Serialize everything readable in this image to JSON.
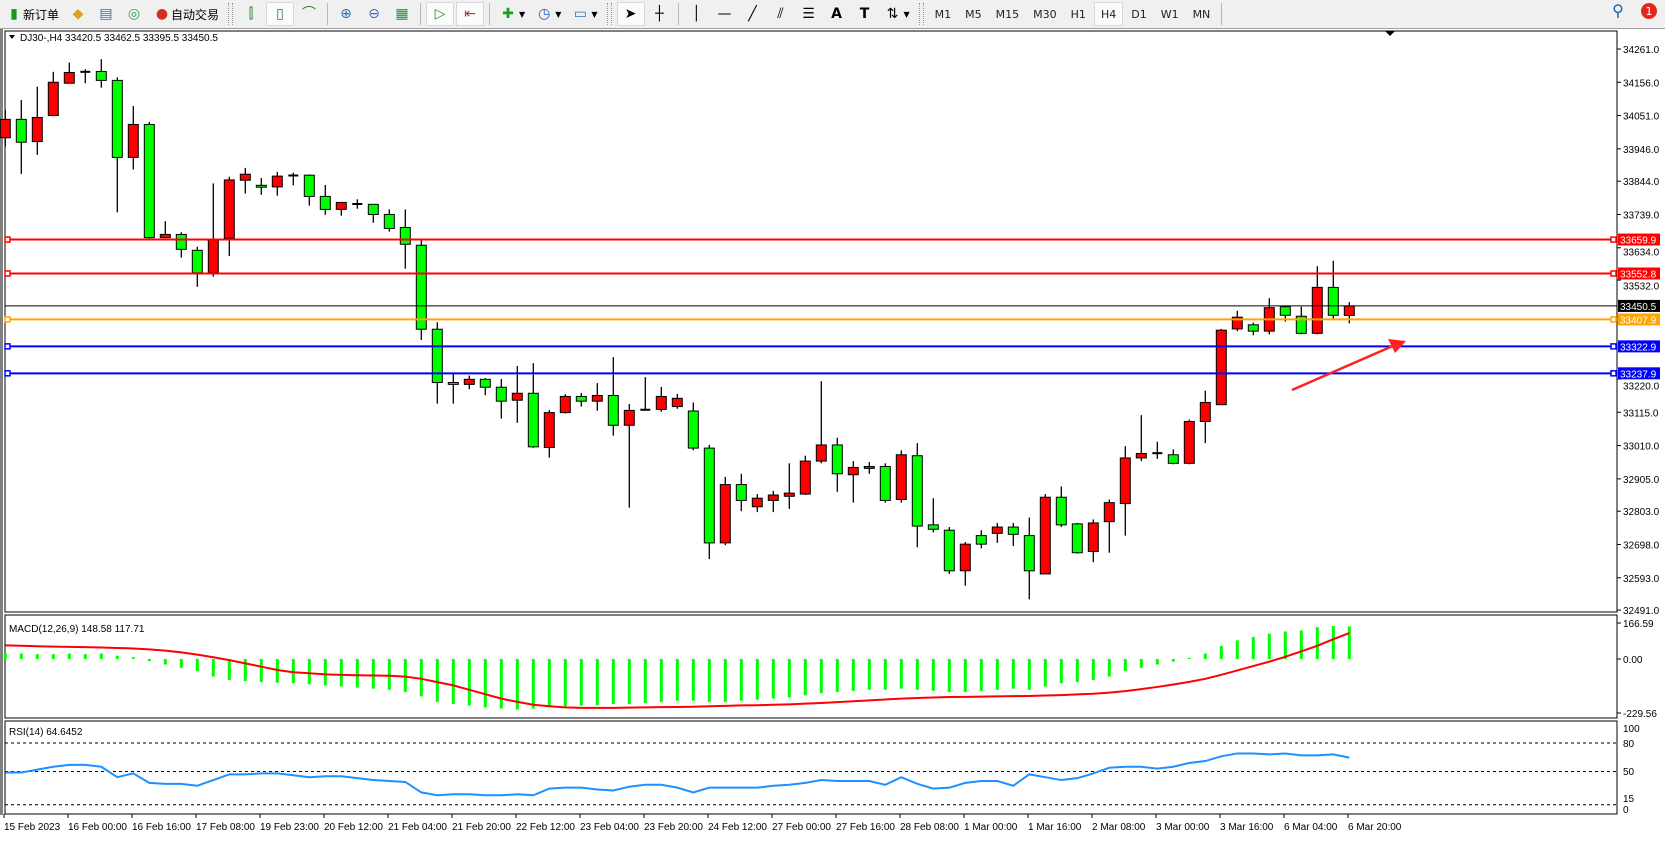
{
  "toolbar": {
    "new_order": "新订单",
    "auto_trading": "自动交易",
    "periods": [
      "M1",
      "M5",
      "M15",
      "M30",
      "H1",
      "H4",
      "D1",
      "W1",
      "MN"
    ],
    "active_period": "H4",
    "notification_count": "1",
    "icons": [
      "new-order-icon",
      "history-icon",
      "terminal-icon",
      "signal-icon",
      "auto-trading-icon",
      "bar-chart-icon",
      "candlestick-icon",
      "line-chart-icon",
      "zoom-in-icon",
      "zoom-out-icon",
      "tile-windows-icon",
      "auto-scroll-icon",
      "chart-shift-icon",
      "indicators-icon",
      "periods-icon",
      "templates-icon",
      "cursor-icon",
      "crosshair-icon",
      "vertical-line-icon",
      "horizontal-line-icon",
      "trendline-icon",
      "equidistant-channel-icon",
      "fibonacci-icon",
      "text-icon",
      "text-label-icon",
      "arrows-icon",
      "search-icon",
      "notification-icon"
    ]
  },
  "chart": {
    "symbol_header": "DJ30-,H4  33420.5 33462.5 33395.5 33450.5",
    "colors": {
      "up": "#ff0000",
      "down": "#00ff00",
      "outline": "#000000",
      "macd_hist": "#00ff00",
      "macd_signal": "#ff0000",
      "rsi": "#1e90ff"
    },
    "price_ticks": [
      "34261.0",
      "34156.0",
      "34051.0",
      "33946.0",
      "33844.0",
      "33739.0",
      "33634.0",
      "33532.0",
      "33220.0",
      "33115.0",
      "33010.0",
      "32905.0",
      "32803.0",
      "32698.0",
      "32593.0",
      "32491.0"
    ],
    "levels": [
      {
        "price": "33659.9",
        "color": "#ff0000"
      },
      {
        "price": "33552.8",
        "color": "#ff0000"
      },
      {
        "price": "33450.5",
        "color": "#000000",
        "bid": true
      },
      {
        "price": "33407.9",
        "color": "#ffa500"
      },
      {
        "price": "33322.9",
        "color": "#0000ff"
      },
      {
        "price": "33237.9",
        "color": "#0000ff"
      }
    ],
    "arrow_color": "#ff2020",
    "time_labels": [
      "15 Feb 2023",
      "16 Feb 00:00",
      "16 Feb 16:00",
      "17 Feb 08:00",
      "19 Feb 23:00",
      "20 Feb 12:00",
      "21 Feb 04:00",
      "21 Feb 20:00",
      "22 Feb 12:00",
      "23 Feb 04:00",
      "23 Feb 20:00",
      "24 Feb 12:00",
      "27 Feb 00:00",
      "27 Feb 16:00",
      "28 Feb 08:00",
      "1 Mar 00:00",
      "1 Mar 16:00",
      "2 Mar 08:00",
      "3 Mar 00:00",
      "3 Mar 16:00",
      "6 Mar 04:00",
      "6 Mar 20:00"
    ]
  },
  "macd": {
    "label": "MACD(12,26,9) 148.58 117.71",
    "ticks": [
      "166.59",
      "0.00",
      "-229.56"
    ]
  },
  "rsi": {
    "label": "RSI(14) 64.6452",
    "ticks": [
      "100",
      "80",
      "50",
      "15",
      "0"
    ]
  },
  "chart_data": [
    {
      "type": "candlestick",
      "title": "DJ30-,H4",
      "ohlc_order": [
        "open",
        "high",
        "low",
        "close"
      ],
      "ylim": [
        32491,
        34261
      ],
      "candles": [
        [
          33981,
          34069,
          33953,
          34039
        ],
        [
          34039,
          34100,
          33867,
          33967
        ],
        [
          33969,
          34142,
          33927,
          34045
        ],
        [
          34051,
          34189,
          34051,
          34156
        ],
        [
          34153,
          34218,
          34153,
          34187
        ],
        [
          34189,
          34197,
          34153,
          34188
        ],
        [
          34190,
          34229,
          34139,
          34162
        ],
        [
          34162,
          34172,
          33746,
          33919
        ],
        [
          33919,
          34081,
          33881,
          34023
        ],
        [
          34023,
          34031,
          33658,
          33666
        ],
        [
          33666,
          33718,
          33666,
          33676
        ],
        [
          33676,
          33683,
          33603,
          33629
        ],
        [
          33626,
          33637,
          33511,
          33555
        ],
        [
          33555,
          33837,
          33543,
          33661
        ],
        [
          33664,
          33858,
          33608,
          33848
        ],
        [
          33847,
          33886,
          33805,
          33866
        ],
        [
          33831,
          33854,
          33801,
          33825
        ],
        [
          33826,
          33873,
          33798,
          33860
        ],
        [
          33862,
          33871,
          33831,
          33860
        ],
        [
          33863,
          33865,
          33767,
          33796
        ],
        [
          33796,
          33832,
          33738,
          33755
        ],
        [
          33755,
          33777,
          33735,
          33777
        ],
        [
          33772,
          33787,
          33757,
          33772
        ],
        [
          33771,
          33771,
          33713,
          33739
        ],
        [
          33739,
          33755,
          33685,
          33695
        ],
        [
          33698,
          33755,
          33568,
          33645
        ],
        [
          33642,
          33658,
          33343,
          33377
        ],
        [
          33377,
          33399,
          33142,
          33209
        ],
        [
          33209,
          33238,
          33142,
          33203
        ],
        [
          33203,
          33231,
          33188,
          33219
        ],
        [
          33219,
          33223,
          33169,
          33194
        ],
        [
          33194,
          33220,
          33095,
          33150
        ],
        [
          33153,
          33261,
          33082,
          33175
        ],
        [
          33175,
          33270,
          33003,
          33006
        ],
        [
          33004,
          33122,
          32972,
          33114
        ],
        [
          33114,
          33172,
          33111,
          33165
        ],
        [
          33165,
          33176,
          33133,
          33150
        ],
        [
          33150,
          33207,
          33120,
          33168
        ],
        [
          33168,
          33289,
          33041,
          33074
        ],
        [
          33074,
          33141,
          32814,
          33121
        ],
        [
          33123,
          33226,
          33120,
          33123
        ],
        [
          33124,
          33195,
          33117,
          33165
        ],
        [
          33133,
          33173,
          33126,
          33159
        ],
        [
          33119,
          33146,
          32995,
          33002
        ],
        [
          33002,
          33012,
          32652,
          32703
        ],
        [
          32703,
          32911,
          32696,
          32887
        ],
        [
          32887,
          32921,
          32803,
          32837
        ],
        [
          32817,
          32857,
          32800,
          32844
        ],
        [
          32837,
          32867,
          32800,
          32854
        ],
        [
          32850,
          32954,
          32810,
          32860
        ],
        [
          32857,
          32978,
          32854,
          32961
        ],
        [
          32961,
          33213,
          32954,
          33012
        ],
        [
          33012,
          33035,
          32864,
          32921
        ],
        [
          32918,
          32961,
          32830,
          32941
        ],
        [
          32938,
          32958,
          32921,
          32944
        ],
        [
          32944,
          32954,
          32830,
          32837
        ],
        [
          32840,
          32995,
          32830,
          32981
        ],
        [
          32978,
          33018,
          32689,
          32756
        ],
        [
          32760,
          32844,
          32736,
          32746
        ],
        [
          32743,
          32753,
          32605,
          32615
        ],
        [
          32615,
          32706,
          32568,
          32699
        ],
        [
          32726,
          32743,
          32686,
          32699
        ],
        [
          32733,
          32766,
          32703,
          32753
        ],
        [
          32753,
          32766,
          32693,
          32730
        ],
        [
          32726,
          32783,
          32525,
          32615
        ],
        [
          32605,
          32857,
          32605,
          32847
        ],
        [
          32847,
          32881,
          32753,
          32760
        ],
        [
          32763,
          32766,
          32669,
          32672
        ],
        [
          32676,
          32777,
          32642,
          32766
        ],
        [
          32770,
          32840,
          32672,
          32830
        ],
        [
          32827,
          33008,
          32726,
          32971
        ],
        [
          32971,
          33106,
          32961,
          32985
        ],
        [
          32985,
          33022,
          32968,
          32986
        ],
        [
          32981,
          32998,
          32951,
          32954
        ],
        [
          32954,
          33092,
          32951,
          33086
        ],
        [
          33086,
          33183,
          33018,
          33146
        ],
        [
          33139,
          33378,
          33139,
          33374
        ],
        [
          33378,
          33435,
          33371,
          33415
        ],
        [
          33391,
          33398,
          33358,
          33371
        ],
        [
          33371,
          33475,
          33361,
          33445
        ],
        [
          33448,
          33452,
          33401,
          33421
        ],
        [
          33418,
          33448,
          33361,
          33364
        ],
        [
          33364,
          33576,
          33361,
          33509
        ],
        [
          33509,
          33593,
          33408,
          33421
        ],
        [
          33420.5,
          33462.5,
          33395.5,
          33450.5
        ]
      ]
    },
    {
      "type": "bar+line",
      "title": "MACD(12,26,9)",
      "ylim": [
        -229.56,
        166.59
      ],
      "series": [
        {
          "name": "MACD",
          "type": "bar",
          "values": [
            25,
            25,
            22,
            22,
            25,
            22,
            25,
            15,
            8,
            -10,
            -25,
            -40,
            -55,
            -80,
            -95,
            -100,
            -105,
            -108,
            -110,
            -115,
            -120,
            -125,
            -130,
            -135,
            -140,
            -150,
            -170,
            -195,
            -205,
            -212,
            -220,
            -225,
            -230,
            -225,
            -220,
            -215,
            -212,
            -210,
            -205,
            -205,
            -200,
            -195,
            -190,
            -190,
            -195,
            -195,
            -190,
            -185,
            -180,
            -175,
            -165,
            -155,
            -150,
            -145,
            -140,
            -140,
            -135,
            -140,
            -145,
            -150,
            -150,
            -145,
            -140,
            -135,
            -140,
            -125,
            -110,
            -105,
            -95,
            -80,
            -55,
            -40,
            -25,
            -12,
            5,
            25,
            60,
            85,
            100,
            115,
            125,
            130,
            145,
            150,
            148.58
          ]
        },
        {
          "name": "Signal",
          "type": "line",
          "values": [
            62,
            60,
            58,
            56,
            55,
            54,
            52,
            50,
            48,
            44,
            38,
            30,
            20,
            8,
            -5,
            -20,
            -35,
            -50,
            -60,
            -65,
            -70,
            -72,
            -74,
            -75,
            -76,
            -80,
            -90,
            -105,
            -120,
            -140,
            -160,
            -180,
            -195,
            -208,
            -215,
            -220,
            -222,
            -222,
            -222,
            -221,
            -220,
            -219,
            -218,
            -217,
            -215,
            -213,
            -211,
            -210,
            -208,
            -206,
            -203,
            -200,
            -196,
            -192,
            -188,
            -184,
            -180,
            -177,
            -175,
            -173,
            -172,
            -171,
            -170,
            -169,
            -168,
            -166,
            -164,
            -161,
            -158,
            -153,
            -146,
            -137,
            -127,
            -116,
            -104,
            -90,
            -72,
            -52,
            -32,
            -12,
            10,
            35,
            60,
            90,
            117.71
          ]
        }
      ]
    },
    {
      "type": "line",
      "title": "RSI(14)",
      "ylim": [
        0,
        100
      ],
      "levels": [
        80,
        50,
        15
      ],
      "values": [
        49,
        49,
        52,
        55,
        57,
        57,
        55,
        44,
        48,
        38,
        37,
        37,
        35,
        41,
        47,
        47,
        48,
        48,
        46,
        44,
        45,
        45,
        43,
        41,
        40,
        39,
        28,
        25,
        26,
        26,
        25,
        25,
        26,
        25,
        32,
        33,
        33,
        31,
        30,
        34,
        36,
        36,
        33,
        28,
        33,
        33,
        33,
        33,
        35,
        36,
        38,
        41,
        40,
        40,
        40,
        36,
        44,
        37,
        32,
        33,
        38,
        40,
        40,
        35,
        47,
        44,
        41,
        43,
        48,
        54,
        55,
        55,
        53,
        55,
        59,
        61,
        66,
        69,
        69,
        68,
        69,
        67,
        67,
        68,
        64.6452
      ]
    }
  ]
}
